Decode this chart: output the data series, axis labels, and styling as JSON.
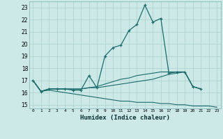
{
  "title": "",
  "xlabel": "Humidex (Indice chaleur)",
  "xlim": [
    -0.5,
    23.5
  ],
  "ylim": [
    14.7,
    23.5
  ],
  "xticks": [
    0,
    1,
    2,
    3,
    4,
    5,
    6,
    7,
    8,
    9,
    10,
    11,
    12,
    13,
    14,
    15,
    16,
    17,
    18,
    19,
    20,
    21,
    22,
    23
  ],
  "yticks": [
    15,
    16,
    17,
    18,
    19,
    20,
    21,
    22,
    23
  ],
  "background_color": "#cce9e8",
  "grid_color": "#aad0cf",
  "line_color": "#1a6b6b",
  "line1_x": [
    0,
    1,
    2,
    3,
    4,
    5,
    6,
    7,
    8,
    9,
    10,
    11,
    12,
    13,
    14,
    15,
    16,
    17,
    18,
    19,
    20,
    21
  ],
  "line1_y": [
    17.0,
    16.1,
    16.3,
    16.3,
    16.3,
    16.2,
    16.2,
    17.4,
    16.4,
    19.0,
    19.7,
    19.9,
    21.1,
    21.6,
    23.2,
    21.8,
    22.1,
    17.6,
    17.7,
    17.7,
    16.5,
    16.3
  ],
  "line2_x": [
    0,
    1,
    2,
    3,
    4,
    5,
    6,
    7,
    8,
    9,
    10,
    11,
    12,
    13,
    14,
    15,
    16,
    17,
    18,
    19,
    20,
    21
  ],
  "line2_y": [
    17.0,
    16.1,
    16.3,
    16.3,
    16.3,
    16.3,
    16.3,
    16.4,
    16.4,
    16.5,
    16.6,
    16.7,
    16.8,
    16.9,
    17.0,
    17.1,
    17.3,
    17.5,
    17.6,
    17.7,
    16.5,
    16.3
  ],
  "line3_x": [
    0,
    1,
    2,
    3,
    4,
    5,
    6,
    7,
    8,
    9,
    10,
    11,
    12,
    13,
    14,
    15,
    16,
    17,
    18,
    19,
    20,
    21,
    22,
    23
  ],
  "line3_y": [
    17.0,
    16.1,
    16.2,
    16.1,
    16.0,
    15.9,
    15.8,
    15.7,
    15.6,
    15.5,
    15.4,
    15.3,
    15.3,
    15.2,
    15.2,
    15.2,
    15.1,
    15.1,
    15.0,
    15.0,
    14.9,
    14.9,
    14.9,
    14.8
  ],
  "line4_x": [
    0,
    1,
    2,
    3,
    4,
    5,
    6,
    7,
    8,
    9,
    10,
    11,
    12,
    13,
    14,
    15,
    16,
    17,
    18,
    19,
    20,
    21
  ],
  "line4_y": [
    17.0,
    16.1,
    16.3,
    16.3,
    16.3,
    16.3,
    16.3,
    16.4,
    16.5,
    16.7,
    16.9,
    17.1,
    17.2,
    17.4,
    17.5,
    17.6,
    17.7,
    17.7,
    17.7,
    17.7,
    16.5,
    16.3
  ]
}
